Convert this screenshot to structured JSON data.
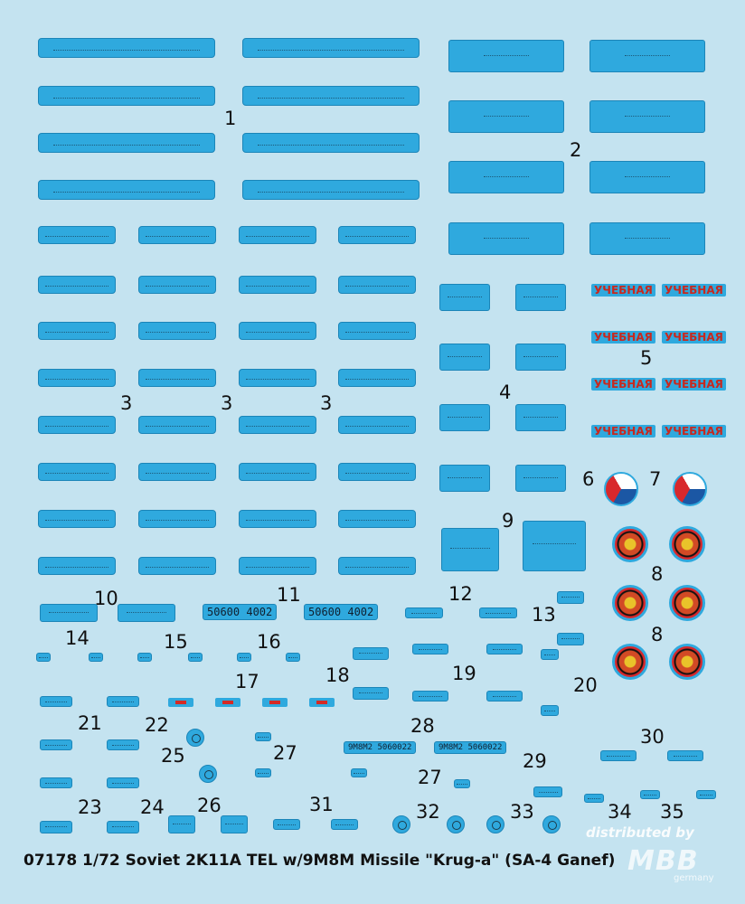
{
  "caption": "07178 1/72 Soviet 2K11A  TEL w/9M8M Missile \"Krug-a\" (SA-4 Ganef)",
  "watermark": {
    "line1": "distributed by",
    "line2": "MBB",
    "line3": "germany"
  },
  "numbers": {
    "n1": "1",
    "n2": "2",
    "n3a": "3",
    "n3b": "3",
    "n3c": "3",
    "n4": "4",
    "n5": "5",
    "n6": "6",
    "n7": "7",
    "n8a": "8",
    "n8b": "8",
    "n9": "9",
    "n10": "10",
    "n11": "11",
    "n12": "12",
    "n13": "13",
    "n14": "14",
    "n15": "15",
    "n16": "16",
    "n17": "17",
    "n18": "18",
    "n19": "19",
    "n20": "20",
    "n21": "21",
    "n22": "22",
    "n23": "23",
    "n24": "24",
    "n25": "25",
    "n26": "26",
    "n27a": "27",
    "n27b": "27",
    "n28": "28",
    "n29": "29",
    "n30": "30",
    "n31": "31",
    "n32": "32",
    "n33": "33",
    "n34": "34",
    "n35": "35"
  },
  "texts": {
    "uchebnaya": "УЧЕБНАЯ",
    "reg_a": "50600 4002",
    "reg_b": "50600 4002",
    "serial_a": "9M8M2 5060022",
    "serial_b": "9M8M2 5060022"
  },
  "colors": {
    "sheet": "#c4e3f0",
    "decal": "#2fa9de",
    "red": "#d52a25"
  }
}
